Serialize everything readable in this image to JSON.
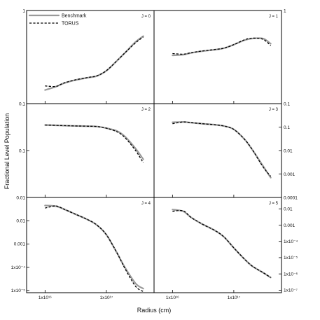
{
  "chart_data": {
    "type": "line",
    "xlabel": "Radius (cm)",
    "ylabel": "Fractional Level Population",
    "xscale": "log",
    "xlim": [
      5000000000000000.0,
      6e+17
    ],
    "x_tick_labels": [
      "1x10¹⁶",
      "1x10¹⁷"
    ],
    "legend": {
      "placement": "top-left",
      "entries": [
        {
          "name": "Benchmark",
          "color": "#9a9a9a",
          "style": "solid"
        },
        {
          "name": "TORUS",
          "color": "#000000",
          "style": "dashed"
        }
      ]
    },
    "x": [
      1e+16,
      1.5e+16,
      2e+16,
      3e+16,
      5e+16,
      7e+16,
      1e+17,
      1.5e+17,
      2e+17,
      3e+17,
      4e+17
    ],
    "panels": [
      {
        "label": "J = 0",
        "column": "left",
        "row": 0,
        "yscale": "log",
        "ylim": [
          0.1,
          1
        ],
        "y_tick_labels": [
          "1",
          "0.1"
        ],
        "y_tick_side": "left",
        "series": [
          {
            "name": "Benchmark",
            "values": [
              0.14,
              0.152,
              0.165,
              0.178,
              0.19,
              0.198,
              0.225,
              0.29,
              0.35,
              0.46,
              0.53
            ]
          },
          {
            "name": "TORUS",
            "values": [
              0.155,
              0.153,
              0.166,
              0.179,
              0.191,
              0.199,
              0.226,
              0.29,
              0.35,
              0.45,
              0.52
            ]
          }
        ]
      },
      {
        "label": "J = 1",
        "column": "right",
        "row": 0,
        "yscale": "log",
        "ylim": [
          0.1,
          1
        ],
        "y_tick_labels": [
          "1",
          "0.1"
        ],
        "y_tick_side": "right",
        "series": [
          {
            "name": "Benchmark",
            "values": [
              0.33,
              0.335,
              0.35,
              0.365,
              0.38,
              0.395,
              0.43,
              0.48,
              0.5,
              0.5,
              0.44
            ]
          },
          {
            "name": "TORUS",
            "values": [
              0.345,
              0.34,
              0.352,
              0.367,
              0.382,
              0.395,
              0.43,
              0.485,
              0.505,
              0.49,
              0.42
            ]
          }
        ]
      },
      {
        "label": "J = 2",
        "column": "left",
        "row": 1,
        "yscale": "log",
        "ylim": [
          0.01,
          1
        ],
        "y_tick_labels": [
          "0.1",
          "0.01"
        ],
        "y_tick_side": "left",
        "series": [
          {
            "name": "Benchmark",
            "values": [
              0.35,
              0.345,
              0.34,
              0.335,
              0.33,
              0.325,
              0.3,
              0.26,
              0.2,
              0.11,
              0.065
            ]
          },
          {
            "name": "TORUS",
            "values": [
              0.35,
              0.345,
              0.34,
              0.335,
              0.33,
              0.325,
              0.3,
              0.25,
              0.19,
              0.1,
              0.055
            ]
          }
        ]
      },
      {
        "label": "J = 3",
        "column": "right",
        "row": 1,
        "yscale": "log",
        "ylim": [
          0.0001,
          1
        ],
        "y_tick_labels": [
          "0.1",
          "0.01",
          "0.001",
          "0.0001"
        ],
        "y_tick_side": "right",
        "series": [
          {
            "name": "Benchmark",
            "values": [
              0.16,
              0.165,
              0.155,
              0.14,
              0.125,
              0.11,
              0.08,
              0.03,
              0.011,
              0.0022,
              0.0007
            ]
          },
          {
            "name": "TORUS",
            "values": [
              0.14,
              0.165,
              0.155,
              0.14,
              0.125,
              0.11,
              0.08,
              0.03,
              0.011,
              0.002,
              0.0008
            ]
          }
        ]
      },
      {
        "label": "J = 4",
        "column": "left",
        "row": 2,
        "yscale": "log",
        "ylim": [
          8e-06,
          0.1
        ],
        "y_tick_labels": [
          "0.01",
          "0.001",
          "1x10⁻⁴",
          "1x10⁻⁵"
        ],
        "y_tick_side": "left",
        "series": [
          {
            "name": "Benchmark",
            "values": [
              0.045,
              0.042,
              0.032,
              0.02,
              0.011,
              0.0065,
              0.0025,
              0.0004,
              0.0001,
              2e-05,
              1.2e-05
            ]
          },
          {
            "name": "TORUS",
            "values": [
              0.035,
              0.043,
              0.032,
              0.02,
              0.011,
              0.0065,
              0.0025,
              0.0004,
              9e-05,
              1.5e-05,
              9e-06
            ]
          }
        ]
      },
      {
        "label": "J = 5",
        "column": "right",
        "row": 2,
        "yscale": "log",
        "ylim": [
          7e-08,
          0.05
        ],
        "y_tick_labels": [
          "0.01",
          "0.001",
          "1x10⁻⁴",
          "1x10⁻⁵",
          "1x10⁻⁶",
          "1x10⁻⁷"
        ],
        "y_tick_side": "right",
        "series": [
          {
            "name": "Benchmark",
            "values": [
              0.009,
              0.007,
              0.003,
              0.0012,
              0.00045,
              0.00018,
              4e-05,
              8e-06,
              3e-06,
              1.2e-06,
              6e-07
            ]
          },
          {
            "name": "TORUS",
            "values": [
              0.007,
              0.0075,
              0.003,
              0.0012,
              0.00045,
              0.00018,
              4e-05,
              8e-06,
              3e-06,
              1.2e-06,
              6e-07
            ]
          }
        ]
      }
    ]
  }
}
